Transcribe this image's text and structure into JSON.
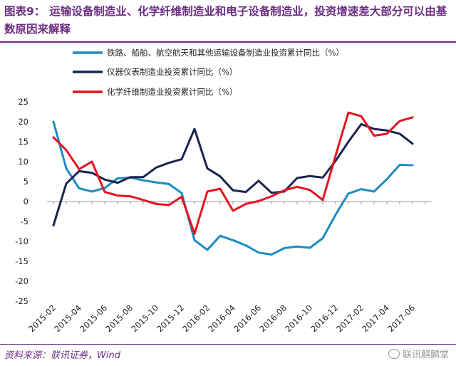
{
  "header": {
    "label": "图表9：",
    "text": "运输设备制造业、化学纤维制造业和电子设备制造业，投资增速差大部分可以由基数原因来解释"
  },
  "footer": {
    "source": "资料来源：联讯证券，Wind",
    "watermark": "联讯麒麟堂"
  },
  "colors": {
    "title": "#6b2d82",
    "series1": "#1e8bc3",
    "series2": "#17254f",
    "series3": "#e3141f"
  },
  "chart_data": {
    "type": "line",
    "x": [
      "2015-02",
      "2015-03",
      "2015-04",
      "2015-05",
      "2015-06",
      "2015-07",
      "2015-08",
      "2015-09",
      "2015-10",
      "2015-11",
      "2015-12",
      "2016-01",
      "2016-02",
      "2016-03",
      "2016-04",
      "2016-05",
      "2016-06",
      "2016-07",
      "2016-08",
      "2016-09",
      "2016-10",
      "2016-11",
      "2016-12",
      "2017-01",
      "2017-02",
      "2017-03",
      "2017-04",
      "2017-05",
      "2017-06",
      "2017-07"
    ],
    "x_tick_labels": [
      "2015-02",
      "2015-04",
      "2015-06",
      "2015-08",
      "2015-10",
      "2015-12",
      "2016-02",
      "2016-04",
      "2016-06",
      "2016-08",
      "2016-10",
      "2016-12",
      "2017-02",
      "2017-04",
      "2017-06"
    ],
    "ylim": [
      -25,
      25
    ],
    "yticks": [
      25,
      20,
      15,
      10,
      5,
      0,
      -5,
      -10,
      -15,
      -20,
      -25
    ],
    "legend_position": "top-left",
    "series": [
      {
        "name": "铁路、船舶、航空航天和其他运输设备制造业投资累计同比（%）",
        "color": "#1e8bc3",
        "values": [
          20.0,
          8.3,
          3.3,
          2.5,
          3.4,
          5.8,
          6.0,
          5.3,
          4.8,
          4.4,
          2.1,
          -9.7,
          -12.1,
          -8.6,
          -9.7,
          -11.0,
          -12.8,
          -13.3,
          -11.7,
          -11.3,
          -11.6,
          -9.2,
          -3.3,
          2.0,
          3.1,
          2.5,
          5.6,
          9.2,
          9.1,
          null
        ]
      },
      {
        "name": "仪器仪表制造业投资累计同比（%）",
        "color": "#17254f",
        "values": [
          -6.0,
          4.5,
          7.6,
          7.2,
          5.5,
          4.7,
          6.1,
          6.1,
          8.5,
          9.7,
          10.6,
          18.2,
          8.3,
          6.3,
          2.8,
          2.4,
          5.2,
          2.2,
          2.5,
          5.9,
          6.4,
          6.0,
          10.2,
          15.0,
          19.4,
          18.2,
          17.8,
          17.0,
          14.5,
          null
        ]
      },
      {
        "name": "化学纤维制造业投资累计同比（%）",
        "color": "#e3141f",
        "values": [
          16.1,
          12.9,
          8.1,
          10.0,
          2.4,
          1.5,
          1.3,
          0.4,
          -0.6,
          -0.9,
          1.2,
          -8.1,
          2.5,
          3.2,
          -2.3,
          -0.6,
          0.1,
          1.3,
          2.8,
          3.7,
          2.9,
          0.4,
          11.5,
          22.3,
          21.4,
          16.5,
          17.0,
          20.2,
          21.1,
          null
        ]
      }
    ]
  }
}
